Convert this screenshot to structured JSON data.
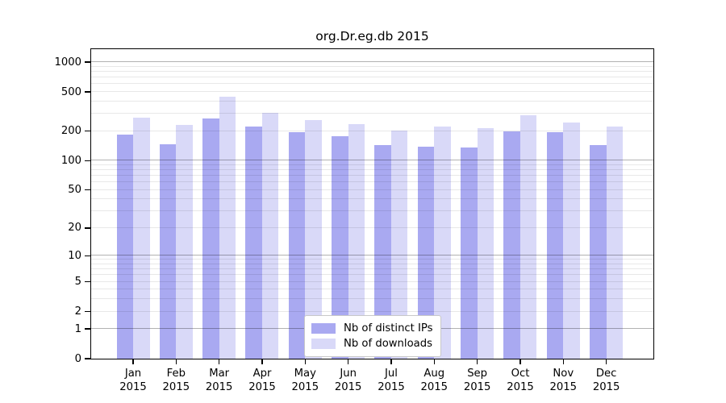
{
  "chart_data": {
    "type": "bar",
    "title": "org.Dr.eg.db 2015",
    "categories": [
      "Jan",
      "Feb",
      "Mar",
      "Apr",
      "May",
      "Jun",
      "Jul",
      "Aug",
      "Sep",
      "Oct",
      "Nov",
      "Dec"
    ],
    "category_year": "2015",
    "series": [
      {
        "name": "Nb of distinct IPs",
        "color": "#a9a9f1",
        "values": [
          185,
          146,
          270,
          222,
          196,
          178,
          145,
          140,
          137,
          198,
          194,
          145
        ]
      },
      {
        "name": "Nb of downloads",
        "color": "#d9d9f8",
        "values": [
          272,
          230,
          445,
          305,
          260,
          234,
          202,
          222,
          216,
          289,
          244,
          222
        ]
      }
    ],
    "yscale": "log10(v+1)",
    "ylim": [
      0,
      1355
    ],
    "yticks": [
      0,
      1,
      2,
      5,
      10,
      20,
      50,
      100,
      200,
      500,
      1000
    ],
    "grid": "horizontal minor and major gridlines drawn over bars",
    "legend_position": "bottom-center"
  },
  "colors": {
    "background": "#ffffff",
    "axis": "#000000",
    "grid_major": "rgba(0,0,0,0.30)",
    "grid_minor": "rgba(0,0,0,0.09)",
    "legend_border": "#c8c8c8",
    "legend_bg": "#ffffff",
    "text": "#000000"
  }
}
